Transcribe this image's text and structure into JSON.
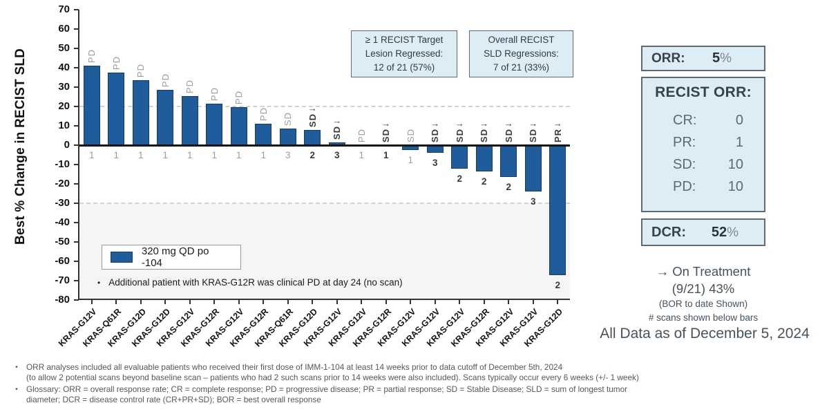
{
  "chart_data": {
    "type": "bar",
    "title": "",
    "ylabel": "Best % Change in RECIST SLD",
    "ylim": [
      -80,
      70
    ],
    "ytick_step": 10,
    "grid": "dashed threshold lines only",
    "threshold_lines": [
      20,
      -30
    ],
    "shaded_band": {
      "from": -30,
      "to": -80
    },
    "bar_color": "#1F5C9B",
    "on_treatment_arrow": "→",
    "legend_position": "lower-left inside plot",
    "series_name": "320 mg QD po -104",
    "patients": [
      {
        "mutation": "KRAS-G12V",
        "value": 41,
        "status": "PD",
        "scans": "1",
        "on_treatment": false
      },
      {
        "mutation": "KRAS-Q61R",
        "value": 37.5,
        "status": "PD",
        "scans": "1",
        "on_treatment": false
      },
      {
        "mutation": "KRAS-G12D",
        "value": 33.5,
        "status": "PD",
        "scans": "1",
        "on_treatment": false
      },
      {
        "mutation": "KRAS-G12D",
        "value": 28.5,
        "status": "PD",
        "scans": "1",
        "on_treatment": false
      },
      {
        "mutation": "KRAS-G12V",
        "value": 25.5,
        "status": "PD",
        "scans": "1",
        "on_treatment": false
      },
      {
        "mutation": "KRAS-G12R",
        "value": 21.5,
        "status": "PD",
        "scans": "1",
        "on_treatment": false
      },
      {
        "mutation": "KRAS-G12V",
        "value": 19.5,
        "status": "PD",
        "scans": "1",
        "on_treatment": false
      },
      {
        "mutation": "KRAS-G12R",
        "value": 11,
        "status": "PD",
        "scans": "1",
        "on_treatment": false
      },
      {
        "mutation": "KRAS-Q61R",
        "value": 8.5,
        "status": "SD",
        "scans": "3",
        "on_treatment": false
      },
      {
        "mutation": "KRAS-G12D",
        "value": 8,
        "status": "SD",
        "scans": "2",
        "on_treatment": true
      },
      {
        "mutation": "KRAS-G12V",
        "value": 1.5,
        "status": "SD",
        "scans": "3",
        "on_treatment": true
      },
      {
        "mutation": "KRAS-G12V",
        "value": 0,
        "status": "PD",
        "scans": "1",
        "on_treatment": false
      },
      {
        "mutation": "KRAS-G12R",
        "value": 0,
        "status": "SD",
        "scans": "1",
        "on_treatment": true
      },
      {
        "mutation": "KRAS-G12V",
        "value": -2.5,
        "status": "SD",
        "scans": "1",
        "on_treatment": false
      },
      {
        "mutation": "KRAS-G12V",
        "value": -4,
        "status": "SD",
        "scans": "3",
        "on_treatment": true
      },
      {
        "mutation": "KRAS-G12V",
        "value": -12,
        "status": "SD",
        "scans": "2",
        "on_treatment": true
      },
      {
        "mutation": "KRAS-G12R",
        "value": -13.5,
        "status": "SD",
        "scans": "2",
        "on_treatment": true
      },
      {
        "mutation": "KRAS-G12V",
        "value": -16.5,
        "status": "SD",
        "scans": "2",
        "on_treatment": true
      },
      {
        "mutation": "KRAS-G12V",
        "value": -24,
        "status": "SD",
        "scans": "3",
        "on_treatment": true
      },
      {
        "mutation": "KRAS-G12D",
        "value": -67,
        "status": "PR",
        "scans": "2",
        "on_treatment": true
      }
    ]
  },
  "info_boxes": [
    {
      "lines": [
        "≥ 1 RECIST Target",
        "Lesion Regressed:",
        "12 of 21 (57%)"
      ]
    },
    {
      "lines": [
        "Overall RECIST",
        "SLD Regressions:",
        "7 of 21 (33%)"
      ]
    }
  ],
  "legend": {
    "label": "320 mg QD po -104"
  },
  "note": {
    "bullet": "•",
    "text": "Additional patient with KRAS-G12R was clinical PD at day 24 (no scan)"
  },
  "panel": {
    "orr": {
      "label": "ORR:",
      "value": "5",
      "unit": "%"
    },
    "recist": {
      "header": "RECIST ORR:",
      "rows": [
        {
          "label": "CR:",
          "value": "0"
        },
        {
          "label": "PR:",
          "value": "1"
        },
        {
          "label": "SD:",
          "value": "10"
        },
        {
          "label": "PD:",
          "value": "10"
        }
      ]
    },
    "dcr": {
      "label": "DCR:",
      "value": "52",
      "unit": "%"
    },
    "on_treatment": {
      "arrow": "→",
      "line1": "On Treatment",
      "line2": "(9/21) 43%",
      "line3": "(BOR to date Shown)",
      "line4": "# scans shown below bars"
    },
    "data_as_of": "All Data as of December 5, 2024"
  },
  "footnotes": [
    {
      "bullet": "•",
      "lines": [
        "ORR analyses included all evaluable patients who received their first dose of IMM-1-104 at least 14 weeks prior to data cutoff of December 5th, 2024",
        "(to allow 2 potential scans beyond baseline scan – patients who had 2 such scans prior to 14 weeks were also included). Scans typically occur every 6 weeks (+/- 1 week)"
      ]
    },
    {
      "bullet": "•",
      "lines": [
        "Glossary:  ORR = overall response rate; CR = complete response; PD = progressive disease; PR = partial response; SD = Stable Disease; SLD = sum of longest tumor",
        "diameter; DCR = disease control rate (CR+PR+SD); BOR = best overall response"
      ]
    }
  ]
}
